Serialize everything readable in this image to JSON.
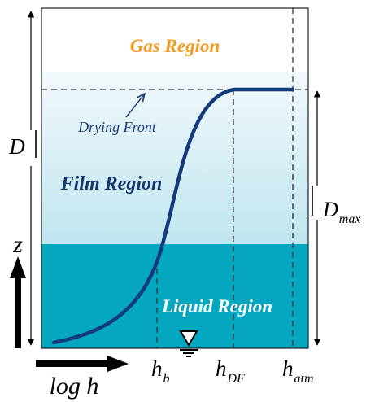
{
  "regions": {
    "gas": "Gas Region",
    "film": "Film Region",
    "liquid": "Liquid Region"
  },
  "annotations": {
    "drying_front": "Drying Front"
  },
  "dimensions": {
    "d_label": "D",
    "dmax_base": "D",
    "dmax_sub": "max"
  },
  "axes": {
    "vertical": "z",
    "horizontal": "log h"
  },
  "h_markers": [
    {
      "base": "h",
      "sub": "b"
    },
    {
      "base": "h",
      "sub": "DF"
    },
    {
      "base": "h",
      "sub": "atm"
    }
  ],
  "colors": {
    "liquid": "#05a6c0",
    "film_top": "#eaf6fa",
    "film_bottom": "#bde4ee",
    "curve": "#133a7c",
    "gas_text": "#f39a1e"
  },
  "icons": {
    "water_table": "water-table-icon"
  }
}
